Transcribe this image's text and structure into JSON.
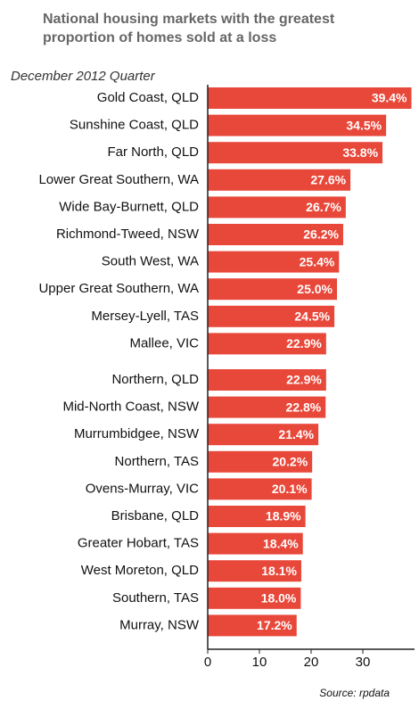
{
  "chart_data": {
    "type": "bar",
    "orientation": "horizontal",
    "title": [
      "National housing markets with the greatest",
      "proportion of homes sold at a loss"
    ],
    "subtitle": "December 2012 Quarter",
    "source": "Source: rpdata",
    "color": "#e8483a",
    "categories": [
      "Gold Coast, QLD",
      "Sunshine Coast, QLD",
      "Far North, QLD",
      "Lower Great Southern, WA",
      "Wide Bay-Burnett, QLD",
      "Richmond-Tweed, NSW",
      "South West, WA",
      "Upper Great Southern, WA",
      "Mersey-Lyell, TAS",
      "Mallee, VIC",
      "Northern, QLD",
      "Mid-North Coast, NSW",
      "Murrumbidgee, NSW",
      "Northern, TAS",
      "Ovens-Murray, VIC",
      "Brisbane, QLD",
      "Greater Hobart, TAS",
      "West Moreton, QLD",
      "Southern, TAS",
      "Murray, NSW"
    ],
    "values": [
      39.4,
      34.5,
      33.8,
      27.6,
      26.7,
      26.2,
      25.4,
      25.0,
      24.5,
      22.9,
      22.9,
      22.8,
      21.4,
      20.2,
      20.1,
      18.9,
      18.4,
      18.1,
      18.0,
      17.2
    ],
    "value_labels": [
      "39.4%",
      "34.5%",
      "33.8%",
      "27.6%",
      "26.7%",
      "26.2%",
      "25.4%",
      "25.0%",
      "24.5%",
      "22.9%",
      "22.9%",
      "22.8%",
      "21.4%",
      "20.2%",
      "20.1%",
      "18.9%",
      "18.4%",
      "18.1%",
      "18.0%",
      "17.2%"
    ],
    "xlim": [
      0,
      40
    ],
    "xticks": [
      0,
      10,
      20,
      30
    ]
  }
}
